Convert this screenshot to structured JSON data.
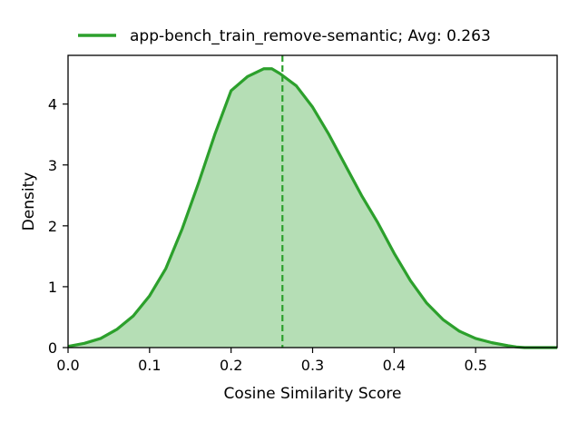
{
  "chart_data": {
    "type": "area",
    "title": "",
    "xlabel": "Cosine Similarity Score",
    "ylabel": "Density",
    "xlim": [
      0.0,
      0.6
    ],
    "ylim": [
      0,
      4.8
    ],
    "xticks": [
      0.0,
      0.1,
      0.2,
      0.3,
      0.4,
      0.5
    ],
    "xtick_labels": [
      "0.0",
      "0.1",
      "0.2",
      "0.3",
      "0.4",
      "0.5"
    ],
    "yticks": [
      0,
      1,
      2,
      3,
      4
    ],
    "ytick_labels": [
      "0",
      "1",
      "2",
      "3",
      "4"
    ],
    "grid": false,
    "legend_position": "top-center",
    "series": [
      {
        "name": "app-bench_train_remove-semantic; Avg: 0.263",
        "color": "#2ca02c",
        "fill_color": "#2ca02c",
        "mean": 0.263,
        "x": [
          0.0,
          0.02,
          0.04,
          0.06,
          0.08,
          0.1,
          0.12,
          0.14,
          0.16,
          0.18,
          0.2,
          0.22,
          0.24,
          0.25,
          0.26,
          0.28,
          0.3,
          0.32,
          0.34,
          0.36,
          0.38,
          0.4,
          0.42,
          0.44,
          0.46,
          0.48,
          0.5,
          0.52,
          0.54,
          0.55,
          0.56,
          0.58,
          0.6
        ],
        "y": [
          0.02,
          0.07,
          0.15,
          0.3,
          0.52,
          0.85,
          1.3,
          1.95,
          2.7,
          3.5,
          4.22,
          4.45,
          4.58,
          4.58,
          4.5,
          4.3,
          3.95,
          3.5,
          3.0,
          2.5,
          2.05,
          1.55,
          1.1,
          0.73,
          0.46,
          0.27,
          0.15,
          0.08,
          0.03,
          0.01,
          0.0,
          0.0,
          0.0
        ]
      }
    ]
  }
}
